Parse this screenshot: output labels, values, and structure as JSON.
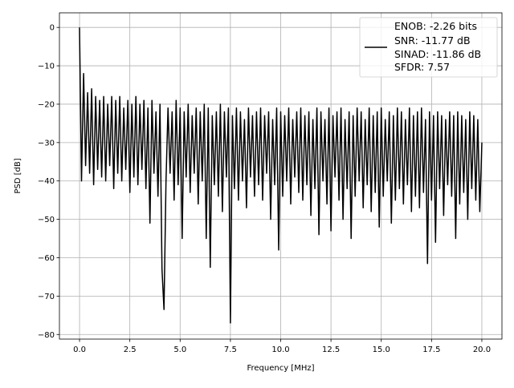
{
  "chart_data": {
    "type": "line",
    "title": "",
    "xlabel": "Frequency [MHz]",
    "ylabel": "PSD [dB]",
    "xlim": [
      -1.0,
      21.0
    ],
    "ylim": [
      -81.2,
      3.8
    ],
    "grid": true,
    "line_color": "#000000",
    "grid_color": "#b0b0b0",
    "x_ticks": [
      0.0,
      2.5,
      5.0,
      7.5,
      10.0,
      12.5,
      15.0,
      17.5,
      20.0
    ],
    "x_tick_labels": [
      "0.0",
      "2.5",
      "5.0",
      "7.5",
      "10.0",
      "12.5",
      "15.0",
      "17.5",
      "20.0"
    ],
    "y_ticks": [
      0,
      -10,
      -20,
      -30,
      -40,
      -50,
      -60,
      -70,
      -80
    ],
    "y_tick_labels": [
      "0",
      "−10",
      "−20",
      "−30",
      "−40",
      "−50",
      "−60",
      "−70",
      "−80"
    ],
    "legend": {
      "placement": "top-right",
      "entries": [
        "ENOB: -2.26 bits",
        "SNR: -11.77 dB",
        "SINAD: -11.86 dB",
        "SFDR: 7.57"
      ]
    },
    "x": [
      0,
      0.1,
      0.2,
      0.3,
      0.4,
      0.5,
      0.6,
      0.7,
      0.8,
      0.9,
      1,
      1.1,
      1.2,
      1.3,
      1.4,
      1.5,
      1.6,
      1.7,
      1.8,
      1.9,
      2,
      2.1,
      2.2,
      2.3,
      2.4,
      2.5,
      2.6,
      2.7,
      2.8,
      2.9,
      3,
      3.1,
      3.2,
      3.3,
      3.4,
      3.5,
      3.6,
      3.7,
      3.8,
      3.9,
      4,
      4.1,
      4.2,
      4.3,
      4.4,
      4.5,
      4.6,
      4.7,
      4.8,
      4.9,
      5,
      5.1,
      5.2,
      5.3,
      5.4,
      5.5,
      5.6,
      5.7,
      5.8,
      5.9,
      6,
      6.1,
      6.2,
      6.3,
      6.4,
      6.5,
      6.6,
      6.7,
      6.8,
      6.9,
      7,
      7.1,
      7.2,
      7.3,
      7.4,
      7.5,
      7.6,
      7.7,
      7.8,
      7.9,
      8,
      8.1,
      8.2,
      8.3,
      8.4,
      8.5,
      8.6,
      8.7,
      8.8,
      8.9,
      9,
      9.1,
      9.2,
      9.3,
      9.4,
      9.5,
      9.6,
      9.7,
      9.8,
      9.9,
      10,
      10.1,
      10.2,
      10.3,
      10.4,
      10.5,
      10.6,
      10.7,
      10.8,
      10.9,
      11,
      11.1,
      11.2,
      11.3,
      11.4,
      11.5,
      11.6,
      11.7,
      11.8,
      11.9,
      12,
      12.1,
      12.2,
      12.3,
      12.4,
      12.5,
      12.6,
      12.7,
      12.8,
      12.9,
      13,
      13.1,
      13.2,
      13.3,
      13.4,
      13.5,
      13.6,
      13.7,
      13.8,
      13.9,
      14,
      14.1,
      14.2,
      14.3,
      14.4,
      14.5,
      14.6,
      14.7,
      14.8,
      14.9,
      15,
      15.1,
      15.2,
      15.3,
      15.4,
      15.5,
      15.6,
      15.7,
      15.8,
      15.9,
      16,
      16.1,
      16.2,
      16.3,
      16.4,
      16.5,
      16.6,
      16.7,
      16.8,
      16.9,
      17,
      17.1,
      17.2,
      17.3,
      17.4,
      17.5,
      17.6,
      17.7,
      17.8,
      17.9,
      18,
      18.1,
      18.2,
      18.3,
      18.4,
      18.5,
      18.6,
      18.7,
      18.8,
      18.9,
      19,
      19.1,
      19.2,
      19.3,
      19.4,
      19.5,
      19.6,
      19.7,
      19.8,
      19.9,
      20
    ],
    "y": [
      0,
      -40,
      -12,
      -36,
      -17,
      -38,
      -16,
      -41,
      -18,
      -37,
      -19,
      -39,
      -18,
      -40,
      -20,
      -36,
      -18,
      -42,
      -19,
      -38,
      -18,
      -40,
      -21,
      -37,
      -19,
      -43,
      -20,
      -39,
      -18,
      -41,
      -20,
      -37,
      -19,
      -42,
      -21,
      -51,
      -19,
      -38,
      -22,
      -44,
      -20,
      -63,
      -73.5,
      -40,
      -21,
      -38,
      -22,
      -45,
      -19,
      -41,
      -21,
      -55,
      -22,
      -39,
      -20,
      -43,
      -23,
      -38,
      -21,
      -46,
      -22,
      -40,
      -20,
      -55,
      -21,
      -62.5,
      -23,
      -41,
      -22,
      -44,
      -20,
      -48,
      -22,
      -39,
      -21,
      -77,
      -23,
      -42,
      -21,
      -45,
      -22,
      -40,
      -24,
      -47,
      -21,
      -39,
      -23,
      -44,
      -22,
      -41,
      -21,
      -45,
      -23,
      -38,
      -22,
      -50,
      -24,
      -41,
      -21,
      -58,
      -22,
      -44,
      -23,
      -40,
      -21,
      -46,
      -24,
      -39,
      -22,
      -43,
      -21,
      -45,
      -23,
      -41,
      -22,
      -49,
      -24,
      -42,
      -21,
      -54,
      -22,
      -40,
      -24,
      -46,
      -21,
      -53,
      -23,
      -39,
      -22,
      -45,
      -21,
      -50,
      -24,
      -42,
      -22,
      -55,
      -23,
      -44,
      -21,
      -40,
      -22,
      -47,
      -24,
      -41,
      -21,
      -48,
      -23,
      -43,
      -22,
      -52,
      -21,
      -44,
      -24,
      -40,
      -22,
      -51,
      -23,
      -45,
      -21,
      -42,
      -22,
      -46,
      -24,
      -41,
      -21,
      -48,
      -23,
      -44,
      -22,
      -47,
      -21,
      -43,
      -24,
      -61.5,
      -22,
      -45,
      -23,
      -56,
      -22,
      -42,
      -23,
      -49,
      -24,
      -41,
      -22,
      -44,
      -23,
      -55,
      -22,
      -46,
      -23,
      -43,
      -24,
      -50,
      -22,
      -42,
      -23,
      -45,
      -24,
      -48,
      -30
    ]
  }
}
